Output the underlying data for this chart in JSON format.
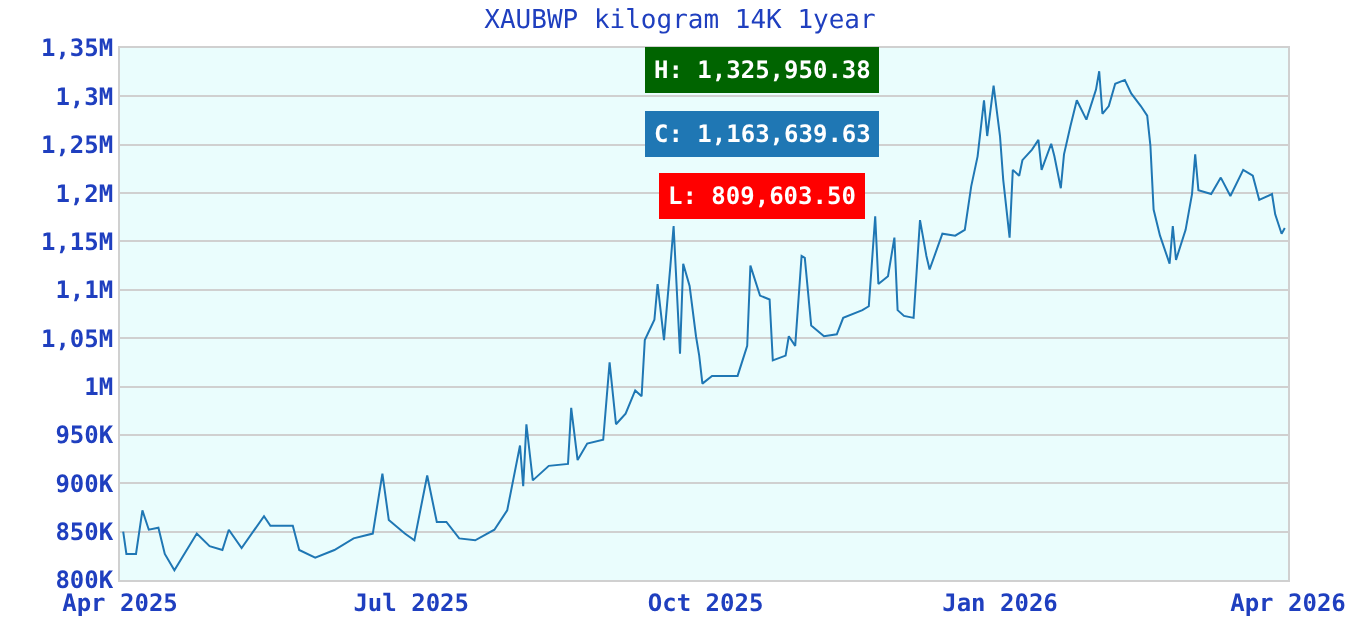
{
  "chart_data": {
    "type": "line",
    "title": "XAUBWP kilogram 14K 1year",
    "annotations": [
      "H: 1,325,950.38",
      "C: 1,163,639.63",
      "L: 809,603.50"
    ],
    "x": [
      "2025-04-02",
      "2025-04-03",
      "2025-04-06",
      "2025-04-08",
      "2025-04-10",
      "2025-04-13",
      "2025-04-15",
      "2025-04-18",
      "2025-04-20",
      "2025-04-25",
      "2025-04-29",
      "2025-05-03",
      "2025-05-05",
      "2025-05-09",
      "2025-05-16",
      "2025-05-18",
      "2025-05-25",
      "2025-05-27",
      "2025-06-01",
      "2025-06-07",
      "2025-06-13",
      "2025-06-19",
      "2025-06-22",
      "2025-06-24",
      "2025-06-29",
      "2025-07-02",
      "2025-07-06",
      "2025-07-09",
      "2025-07-12",
      "2025-07-16",
      "2025-07-21",
      "2025-07-27",
      "2025-07-31",
      "2025-08-04",
      "2025-08-05",
      "2025-08-06",
      "2025-08-08",
      "2025-08-13",
      "2025-08-19",
      "2025-08-20",
      "2025-08-22",
      "2025-08-25",
      "2025-08-30",
      "2025-09-01",
      "2025-09-03",
      "2025-09-06",
      "2025-09-09",
      "2025-09-11",
      "2025-09-12",
      "2025-09-15",
      "2025-09-16",
      "2025-09-18",
      "2025-09-20",
      "2025-09-21",
      "2025-09-23",
      "2025-09-24",
      "2025-09-26",
      "2025-09-28",
      "2025-09-29",
      "2025-09-30",
      "2025-10-03",
      "2025-10-11",
      "2025-10-14",
      "2025-10-15",
      "2025-10-18",
      "2025-10-21",
      "2025-10-22",
      "2025-10-26",
      "2025-10-27",
      "2025-10-29",
      "2025-10-31",
      "2025-11-01",
      "2025-11-03",
      "2025-11-07",
      "2025-11-11",
      "2025-11-13",
      "2025-11-19",
      "2025-11-21",
      "2025-11-23",
      "2025-11-24",
      "2025-11-27",
      "2025-11-29",
      "2025-11-30",
      "2025-12-02",
      "2025-12-05",
      "2025-12-07",
      "2025-12-09",
      "2025-12-10",
      "2025-12-14",
      "2025-12-18",
      "2025-12-21",
      "2025-12-23",
      "2025-12-25",
      "2025-12-27",
      "2025-12-28",
      "2025-12-30",
      "2026-01-01",
      "2026-01-02",
      "2026-01-04",
      "2026-01-05",
      "2026-01-07",
      "2026-01-08",
      "2026-01-11",
      "2026-01-13",
      "2026-01-14",
      "2026-01-17",
      "2026-01-18",
      "2026-01-20",
      "2026-01-21",
      "2026-01-23",
      "2026-01-25",
      "2026-01-28",
      "2026-01-31",
      "2026-02-01",
      "2026-02-02",
      "2026-02-04",
      "2026-02-06",
      "2026-02-09",
      "2026-02-11",
      "2026-02-14",
      "2026-02-16",
      "2026-02-17",
      "2026-02-18",
      "2026-02-20",
      "2026-02-23",
      "2026-02-24",
      "2026-02-25",
      "2026-02-28",
      "2026-03-02",
      "2026-03-03",
      "2026-03-04",
      "2026-03-08",
      "2026-03-11",
      "2026-03-14",
      "2026-03-18",
      "2026-03-21",
      "2026-03-23",
      "2026-03-27",
      "2026-03-28",
      "2026-03-30",
      "2026-03-31"
    ],
    "series": [
      {
        "color": "#1f77b4",
        "values": [
          850000,
          827000,
          827000,
          872000,
          852000,
          854000,
          827000,
          810000,
          821000,
          848000,
          835000,
          831000,
          852000,
          833000,
          866000,
          856000,
          856000,
          831000,
          823000,
          831000,
          843000,
          848000,
          910000,
          862000,
          848000,
          841000,
          908000,
          860000,
          860000,
          843000,
          841000,
          852000,
          872000,
          939000,
          897000,
          961000,
          903000,
          918000,
          920000,
          978000,
          924000,
          941000,
          945000,
          1025000,
          961000,
          972000,
          996000,
          990000,
          1048000,
          1069000,
          1106000,
          1048000,
          1125000,
          1166000,
          1034000,
          1127000,
          1104000,
          1052000,
          1032000,
          1003000,
          1011000,
          1011000,
          1042000,
          1125000,
          1094000,
          1090000,
          1027000,
          1032000,
          1052000,
          1042000,
          1135000,
          1133000,
          1063000,
          1052000,
          1054000,
          1071000,
          1079000,
          1083000,
          1176000,
          1106000,
          1114000,
          1154000,
          1079000,
          1073000,
          1071000,
          1172000,
          1135000,
          1121000,
          1158000,
          1156000,
          1162000,
          1207000,
          1238000,
          1296000,
          1259000,
          1311000,
          1259000,
          1214000,
          1154000,
          1224000,
          1218000,
          1234000,
          1245000,
          1255000,
          1224000,
          1251000,
          1238000,
          1205000,
          1240000,
          1269000,
          1296000,
          1276000,
          1307000,
          1326000,
          1282000,
          1290000,
          1313000,
          1317000,
          1303000,
          1290000,
          1280000,
          1249000,
          1183000,
          1156000,
          1127000,
          1166000,
          1131000,
          1162000,
          1199000,
          1240000,
          1203000,
          1199000,
          1216000,
          1197000,
          1224000,
          1218000,
          1193000,
          1199000,
          1178000,
          1158000,
          1164000
        ]
      }
    ],
    "xlim": [
      "2025-04-01",
      "2026-04-01"
    ],
    "xticks": [
      {
        "value": "2025-04-01",
        "label": "Apr 2025"
      },
      {
        "value": "2025-07-01",
        "label": "Jul 2025"
      },
      {
        "value": "2025-10-01",
        "label": "Oct 2025"
      },
      {
        "value": "2026-01-01",
        "label": "Jan 2026"
      },
      {
        "value": "2026-04-01",
        "label": "Apr 2026"
      }
    ],
    "ylim": [
      800000,
      1350000
    ],
    "yticks": [
      {
        "value": 800000,
        "label": "800K"
      },
      {
        "value": 850000,
        "label": "850K"
      },
      {
        "value": 900000,
        "label": "900K"
      },
      {
        "value": 950000,
        "label": "950K"
      },
      {
        "value": 1000000,
        "label": "1M"
      },
      {
        "value": 1050000,
        "label": "1,05M"
      },
      {
        "value": 1100000,
        "label": "1,1M"
      },
      {
        "value": 1150000,
        "label": "1,15M"
      },
      {
        "value": 1200000,
        "label": "1,2M"
      },
      {
        "value": 1250000,
        "label": "1,25M"
      },
      {
        "value": 1300000,
        "label": "1,3M"
      },
      {
        "value": 1350000,
        "label": "1,35M"
      }
    ],
    "grid": "y",
    "line_style": "solid",
    "marker": "none"
  }
}
